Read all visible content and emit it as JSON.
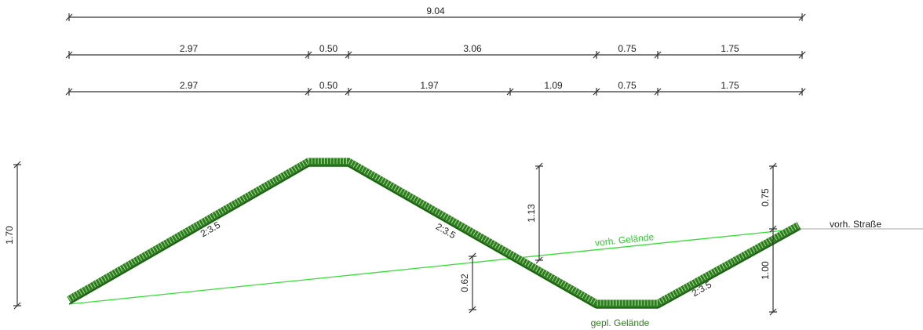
{
  "dimensions": {
    "overall": "9.04",
    "row_1": [
      "2.97",
      "0.50",
      "3.06",
      "0.75",
      "1.75"
    ],
    "row_2": [
      "2.97",
      "0.50",
      "1.97",
      "1.09",
      "0.75",
      "1.75"
    ],
    "vertical": [
      "1.70",
      "1.13",
      "0.62",
      "0.75",
      "1.00"
    ]
  },
  "slopes": [
    "2:3.5",
    "2:3.5",
    "2:3.5"
  ],
  "labels": {
    "existing_terrain": "vorh. Gelände",
    "planned_terrain": "gepl. Gelände",
    "existing_road": "vorh. Straße"
  }
}
